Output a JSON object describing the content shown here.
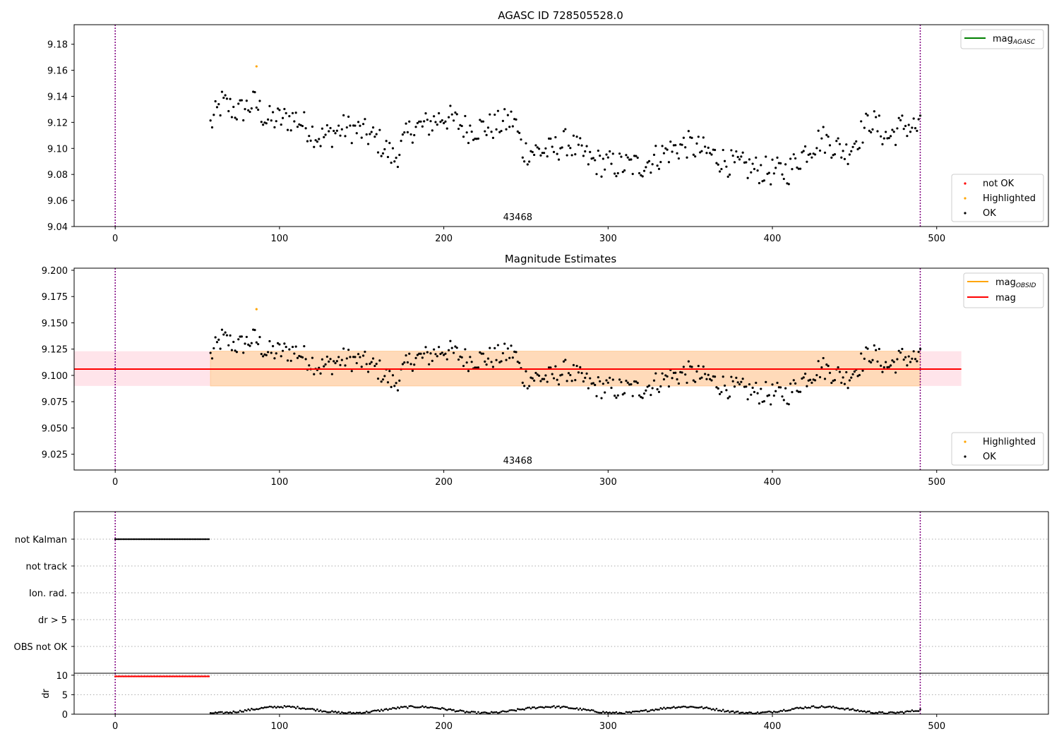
{
  "figure": {
    "ok_legend_label": "OK",
    "highlighted_legend_label": "Highlighted",
    "not_ok_legend_label": "not OK",
    "colors": {
      "ok": "#000000",
      "highlighted": "#ffa500",
      "not_ok": "#ff0000",
      "mag_line": "#ff0000",
      "obsid_line": "#ffa500",
      "agasc_line": "#008000",
      "band_inner": "#ffdab9",
      "band_outer": "#ffe4ea",
      "obs_marker": "#800080"
    }
  },
  "chart_data": [
    {
      "type": "scatter",
      "title": "AGASC ID 728505528.0",
      "xlim": [
        -25,
        568
      ],
      "ylim": [
        9.04,
        9.195
      ],
      "xticks": [
        0,
        100,
        200,
        300,
        400,
        500
      ],
      "yticks": [
        9.04,
        9.06,
        9.08,
        9.1,
        9.12,
        9.14,
        9.16,
        9.18
      ],
      "obs_boundaries": [
        0,
        490
      ],
      "obsid_label": "43468",
      "obsid_label_x": 245,
      "legend_lines": [
        {
          "label_base": "mag",
          "label_sub": "AGASC"
        }
      ],
      "legend_markers": [
        "not OK",
        "Highlighted",
        "OK"
      ],
      "highlighted_points": [
        {
          "x": 86,
          "y": 9.163
        }
      ],
      "ok_series": {
        "x_start": 58,
        "x_end": 490,
        "step": 1
      }
    },
    {
      "type": "scatter",
      "title": "Magnitude Estimates",
      "xlim": [
        -25,
        568
      ],
      "ylim": [
        9.01,
        9.202
      ],
      "xticks": [
        0,
        100,
        200,
        300,
        400,
        500
      ],
      "yticks": [
        9.025,
        9.05,
        9.075,
        9.1,
        9.125,
        9.15,
        9.175,
        9.2
      ],
      "obs_boundaries": [
        0,
        490
      ],
      "obsid_label": "43468",
      "obsid_label_x": 245,
      "mag_value": 9.106,
      "band_inner": {
        "x": [
          58,
          490
        ],
        "y": [
          9.09,
          9.123
        ]
      },
      "band_outer": {
        "x": [
          -25,
          515
        ],
        "y": [
          9.09,
          9.123
        ]
      },
      "mag_line_x": [
        -25,
        515
      ],
      "legend_lines": [
        {
          "label_base": "mag",
          "label_sub": "OBSID"
        },
        {
          "label_base": "mag",
          "label_sub": ""
        }
      ],
      "legend_markers": [
        "Highlighted",
        "OK"
      ],
      "highlighted_points": [
        {
          "x": 86,
          "y": 9.163
        }
      ]
    },
    {
      "type": "scatter",
      "title": "",
      "xlim": [
        -25,
        568
      ],
      "categories": [
        "not Kalman",
        "not track",
        "Ion. rad.",
        "dr > 5",
        "OBS not OK"
      ],
      "flag_series": {
        "category": "not Kalman",
        "x_start": 0,
        "x_end": 57
      },
      "obs_boundaries": [
        0,
        490
      ]
    },
    {
      "type": "scatter",
      "title": "",
      "ylabel": "dr",
      "xlim": [
        -25,
        568
      ],
      "ylim": [
        0,
        10.5
      ],
      "yticks": [
        0,
        5,
        10
      ],
      "xticks": [
        0,
        100,
        200,
        300,
        400,
        500
      ],
      "clipped_series": {
        "x_start": 0,
        "x_end": 57,
        "y": 9.7
      },
      "dr_series": {
        "x_start": 58,
        "x_end": 490
      },
      "obs_boundaries": [
        0,
        490
      ]
    }
  ]
}
